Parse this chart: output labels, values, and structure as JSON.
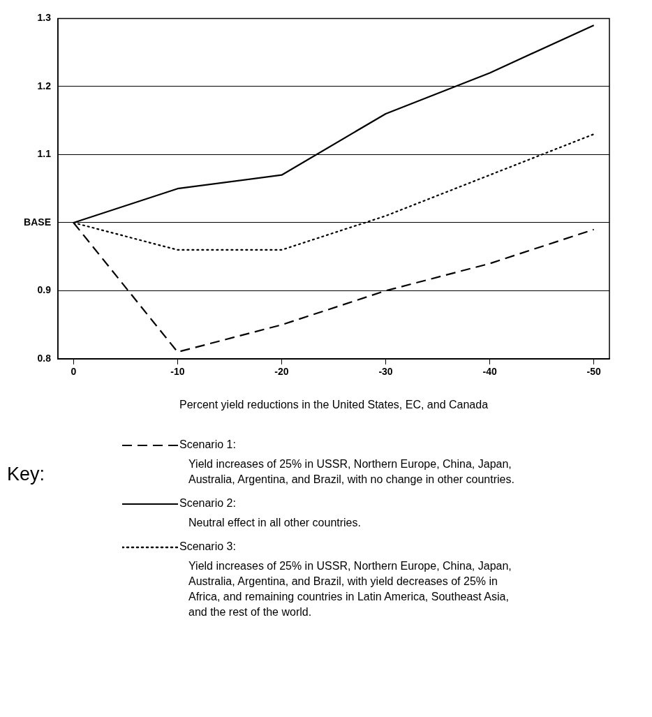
{
  "chart_data": {
    "type": "line",
    "xlabel": "Percent yield reductions in the United States, EC, and Canada",
    "x": [
      0,
      -10,
      -20,
      -30,
      -40,
      -50
    ],
    "xlim": [
      1.5,
      -51.5
    ],
    "xticks": [
      0,
      -10,
      -20,
      -30,
      -40,
      -50
    ],
    "ylim": [
      0.8,
      1.3
    ],
    "yticks": [
      0.8,
      0.9,
      {
        "value": 1,
        "label": "BASE"
      },
      1.1,
      1.2,
      1.3
    ],
    "grid": "y",
    "marker": "none",
    "legend": "bottom",
    "legend_title": "Key:",
    "series": [
      {
        "name": "Scenario 1:",
        "color": "#000000",
        "line_style": "dashed",
        "values": [
          1.0,
          0.81,
          0.85,
          0.9,
          0.94,
          0.99
        ]
      },
      {
        "name": "Scenario 2:",
        "color": "#000000",
        "line_style": "solid",
        "values": [
          1.0,
          1.05,
          1.07,
          1.16,
          1.22,
          1.29
        ]
      },
      {
        "name": "Scenario 3:",
        "color": "#000000",
        "line_style": "dotted",
        "values": [
          1.0,
          0.96,
          0.96,
          1.01,
          1.07,
          1.13
        ]
      }
    ],
    "annotations": [
      "Yield increases of 25% in USSR, Northern Europe, China, Japan, Australia, Argentina, and Brazil, with no change in other countries.",
      "Neutral effect in all other countries.",
      "Yield increases of 25% in USSR, Northern Europe, China, Japan, Australia, Argentina, and Brazil, with yield decreases of 25% in Africa, and remaining countries in Latin America, Southeast Asia, and the rest of the world."
    ]
  }
}
